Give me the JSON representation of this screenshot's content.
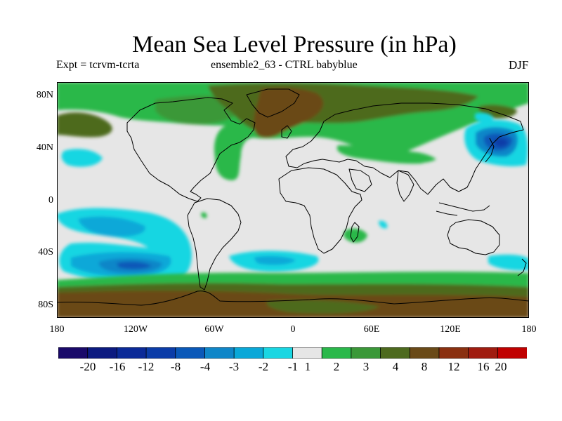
{
  "chart_data": {
    "type": "heatmap",
    "title": "Mean Sea Level Pressure (in hPa)",
    "subtitle_left": "Expt = tcrvm-tcrta",
    "subtitle_center": "ensemble2_63 - CTRL babyblue",
    "season": "DJF",
    "x_ticks": [
      "180",
      "120W",
      "60W",
      "0",
      "60E",
      "120E",
      "180"
    ],
    "y_ticks": [
      "80N",
      "40N",
      "0",
      "40S",
      "80S"
    ],
    "xlim": [
      -180,
      180
    ],
    "ylim": [
      -90,
      90
    ],
    "contour_levels": [
      "-20",
      "-16",
      "-12",
      "-8",
      "-4",
      "-3",
      "-2",
      "-1",
      "1",
      "2",
      "3",
      "4",
      "8",
      "12",
      "16",
      "20"
    ],
    "colorbar_colors": [
      "#1a0a6a",
      "#0c1a80",
      "#0b2a98",
      "#0b3ca8",
      "#0a58b8",
      "#0f86c8",
      "#0aa8d8",
      "#19d6e2",
      "#e6e6e6",
      "#2ab84a",
      "#3a9838",
      "#4d6a1e",
      "#6a4a18",
      "#8a3010",
      "#a01c10",
      "#c00000"
    ],
    "features": [
      {
        "name": "north-atlantic-positive",
        "level": "8",
        "lon": -30,
        "lat": 70
      },
      {
        "name": "arctic-positive",
        "level": "4",
        "lon": 40,
        "lat": 75
      },
      {
        "name": "north-pacific-negative",
        "level": "-8",
        "lon": 160,
        "lat": 45
      },
      {
        "name": "south-pacific-negative",
        "level": "-8",
        "lon": -130,
        "lat": -48
      },
      {
        "name": "south-atlantic-negative",
        "level": "-3",
        "lon": -20,
        "lat": -45
      },
      {
        "name": "southern-ocean-positive",
        "level": "8",
        "lon": 0,
        "lat": -75
      },
      {
        "name": "antarctic-positive",
        "level": "4",
        "lon": 100,
        "lat": -85
      }
    ]
  }
}
